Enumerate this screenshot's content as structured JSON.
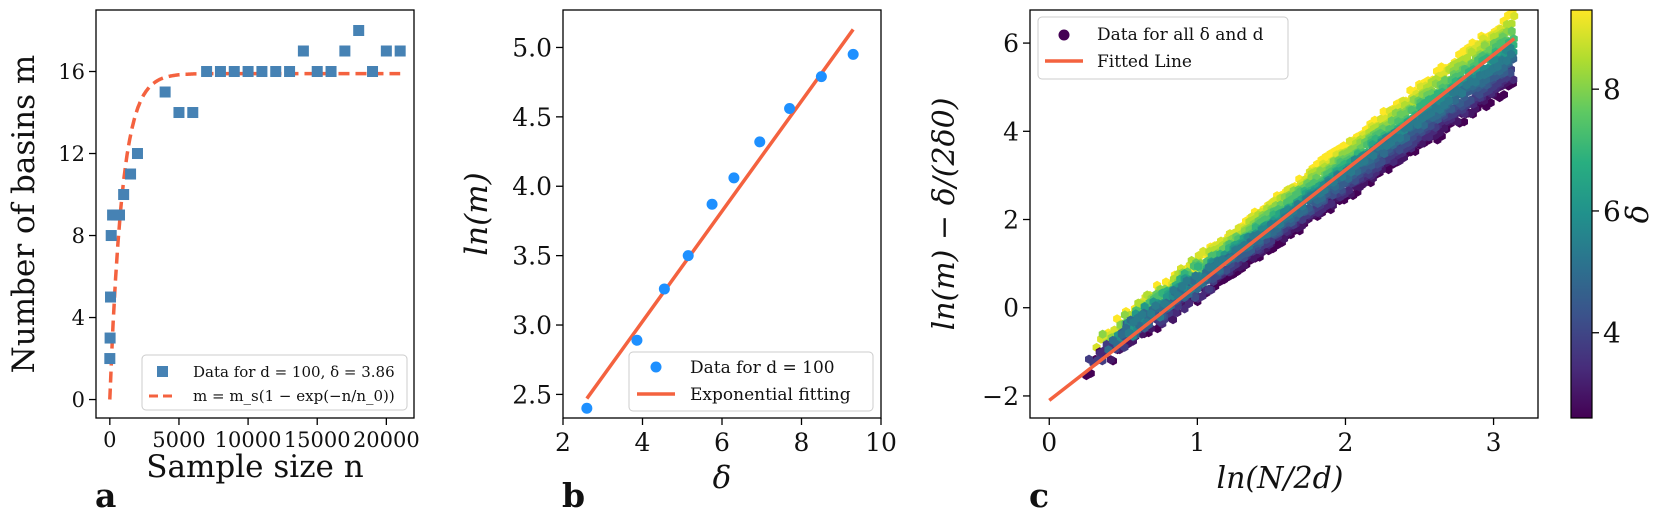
{
  "colors": {
    "blue_square": "#4682b4",
    "blue_dot": "#1e90ff",
    "orange": "#f4623f",
    "axes": "#000000"
  },
  "chart_data": [
    {
      "panel": "a",
      "type": "scatter",
      "panel_label": "a",
      "xlabel": "Sample size n",
      "ylabel": "Number of basins m",
      "xlim": [
        -1000,
        22000
      ],
      "ylim": [
        -0.9,
        19
      ],
      "xticks": [
        0,
        5000,
        10000,
        15000,
        20000
      ],
      "xtick_labels": [
        "0",
        "5000",
        "10000",
        "15000",
        "20000"
      ],
      "yticks": [
        0,
        4,
        8,
        12,
        16
      ],
      "ytick_labels": [
        "0",
        "4",
        "8",
        "12",
        "16"
      ],
      "series": [
        {
          "name": "Data for d = 100, δ = 3.86",
          "kind": "scatter",
          "marker": "square",
          "x": [
            0,
            20,
            50,
            100,
            200,
            500,
            700,
            1000,
            1500,
            2000,
            4000,
            5000,
            6000,
            7000,
            8000,
            9000,
            10000,
            11000,
            12000,
            13000,
            14000,
            15000,
            16000,
            17000,
            18000,
            19000,
            20000,
            21000
          ],
          "y": [
            2,
            3,
            5,
            8,
            9,
            9,
            9,
            10,
            11,
            12,
            15,
            14,
            14,
            16,
            16,
            16,
            16,
            16,
            16,
            16,
            17,
            16,
            16,
            17,
            18,
            16,
            17,
            17
          ]
        },
        {
          "name": "m = m_s(1 − exp(−n/n_0))",
          "kind": "line",
          "style": "dashed",
          "m_s": 15.9,
          "n_0": 900
        }
      ],
      "legend": {
        "position": "lower-right",
        "entries": [
          "Data for d = 100, δ = 3.86",
          "m = m_s(1 − exp(−n/n_0))"
        ]
      }
    },
    {
      "panel": "b",
      "type": "scatter",
      "panel_label": "b",
      "xlabel": "δ",
      "ylabel": "ln(m)",
      "xlim": [
        2.0,
        10.0
      ],
      "ylim": [
        2.33,
        5.27
      ],
      "xticks": [
        2,
        4,
        6,
        8,
        10
      ],
      "xtick_labels": [
        "2",
        "4",
        "6",
        "8",
        "10"
      ],
      "yticks": [
        2.5,
        3.0,
        3.5,
        4.0,
        4.5,
        5.0
      ],
      "ytick_labels": [
        "2.5",
        "3.0",
        "3.5",
        "4.0",
        "4.5",
        "5.0"
      ],
      "series": [
        {
          "name": "Data for d = 100",
          "kind": "scatter",
          "marker": "circle",
          "x": [
            2.6,
            3.86,
            4.55,
            5.15,
            5.75,
            6.3,
            6.95,
            7.7,
            8.5,
            9.3
          ],
          "y": [
            2.4,
            2.89,
            3.26,
            3.5,
            3.87,
            4.06,
            4.32,
            4.56,
            4.79,
            4.95
          ]
        },
        {
          "name": "Exponential fitting",
          "kind": "line",
          "x": [
            2.6,
            9.3
          ],
          "y": [
            2.47,
            5.13
          ]
        }
      ],
      "legend": {
        "position": "lower-right",
        "entries": [
          "Data for d = 100",
          "Exponential fitting"
        ]
      }
    },
    {
      "panel": "c",
      "type": "scatter",
      "panel_label": "c",
      "xlabel": "ln(N/2d)",
      "ylabel": "ln(m) − δ/(2δ0)",
      "xlim": [
        -0.13,
        3.3
      ],
      "ylim": [
        -2.5,
        6.75
      ],
      "xticks": [
        0,
        1,
        2,
        3
      ],
      "xtick_labels": [
        "0",
        "1",
        "2",
        "3"
      ],
      "yticks": [
        -2,
        0,
        2,
        4,
        6
      ],
      "ytick_labels": [
        "−2",
        "0",
        "2",
        "4",
        "6"
      ],
      "series": [
        {
          "name": "Data for all δ and d",
          "kind": "scatter",
          "marker": "hexagon",
          "color_by": "δ",
          "x_range": [
            0,
            3.14
          ],
          "delta_range": [
            2.6,
            9.3
          ]
        },
        {
          "name": "Fitted Line",
          "kind": "line",
          "x": [
            0,
            3.14
          ],
          "y": [
            -2.1,
            6.1
          ]
        }
      ],
      "legend": {
        "position": "top-left",
        "entries": [
          "Data for all δ and d",
          "Fitted Line"
        ]
      },
      "colorbar": {
        "label": "δ",
        "range": [
          2.6,
          9.3
        ],
        "ticks": [
          4,
          6,
          8
        ],
        "tick_labels": [
          "4",
          "6",
          "8"
        ],
        "colormap": "viridis"
      }
    }
  ]
}
